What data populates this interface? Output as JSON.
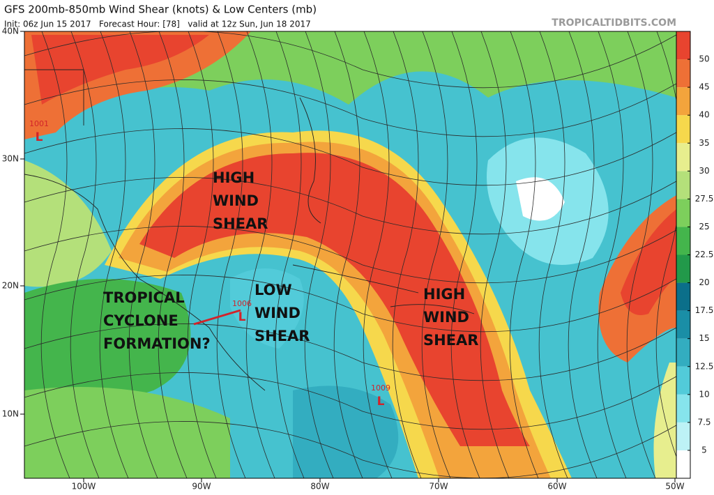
{
  "header": {
    "title": "GFS 200mb-850mb Wind Shear (knots) & Low Centers (mb)",
    "subtitle": "Init: 06z Jun 15 2017   Forecast Hour: [78]   valid at 12z Sun, Jun 18 2017",
    "source": "TROPICALTIDBITS.COM"
  },
  "latitude_labels": [
    "40N",
    "30N",
    "20N",
    "10N"
  ],
  "longitude_labels": [
    "100W",
    "90W",
    "80W",
    "70W",
    "60W",
    "50W"
  ],
  "colorbar": {
    "ticks": [
      5,
      7.5,
      10,
      12.5,
      15,
      17.5,
      20,
      22.5,
      25,
      27.5,
      30,
      35,
      40,
      45,
      50
    ],
    "colors": [
      "#ffffff",
      "#bdf2f6",
      "#86e4ec",
      "#52cbd9",
      "#33adc0",
      "#1a8ea6",
      "#0b6f8a",
      "#22994a",
      "#44b54c",
      "#7dcf5c",
      "#b4e07a",
      "#e7ee8e",
      "#f6d84c",
      "#f3a43c",
      "#ee7036",
      "#e8442f"
    ]
  },
  "annotations": [
    {
      "lines": [
        "HIGH",
        "WIND",
        "SHEAR"
      ]
    },
    {
      "lines": [
        "LOW",
        "WIND",
        "SHEAR"
      ]
    },
    {
      "lines": [
        "HIGH",
        "WIND",
        "SHEAR"
      ]
    },
    {
      "lines": [
        "TROPICAL",
        "CYCLONE",
        "FORMATION?"
      ]
    }
  ],
  "low_centers": [
    {
      "pressure": "1001",
      "symbol": "L"
    },
    {
      "pressure": "1006",
      "symbol": "L"
    },
    {
      "pressure": "1009",
      "symbol": "L"
    }
  ]
}
